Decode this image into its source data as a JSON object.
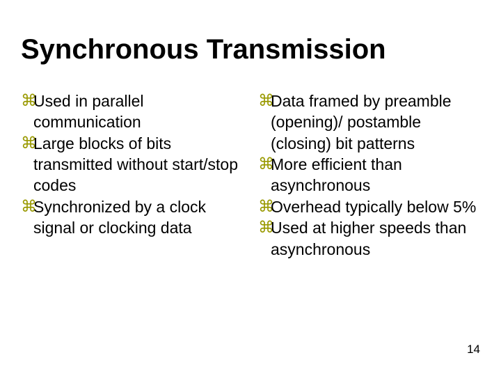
{
  "title": "Synchronous Transmission",
  "bullet_glyph": "⌘",
  "bullet_color": "#999900",
  "text_color": "#000000",
  "background_color": "#ffffff",
  "title_font_family": "Arial",
  "title_font_size_pt": 30,
  "title_font_weight": 900,
  "body_font_family": "Verdana",
  "body_font_size_pt": 17,
  "left_column": {
    "items": [
      "Used in parallel communication",
      "Large blocks of bits transmitted without start/stop codes",
      "Synchronized by a clock signal or clocking data"
    ]
  },
  "right_column": {
    "items": [
      "Data framed by preamble (opening)/ postamble (closing) bit patterns",
      "More efficient than asynchronous",
      "Overhead typically below 5%",
      "Used at higher speeds than asynchronous"
    ]
  },
  "page_number": "14"
}
